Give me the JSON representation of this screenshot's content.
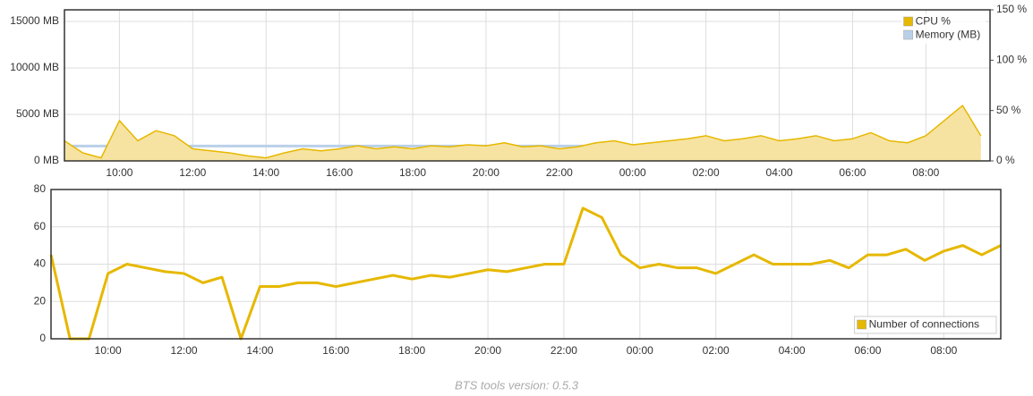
{
  "chart_data": [
    {
      "type": "line",
      "xlim": [
        8.5,
        33.75
      ],
      "xticks": [
        {
          "value": 10,
          "label": "10:00"
        },
        {
          "value": 12,
          "label": "12:00"
        },
        {
          "value": 14,
          "label": "14:00"
        },
        {
          "value": 16,
          "label": "16:00"
        },
        {
          "value": 18,
          "label": "18:00"
        },
        {
          "value": 20,
          "label": "20:00"
        },
        {
          "value": 22,
          "label": "22:00"
        },
        {
          "value": 24,
          "label": "00:00"
        },
        {
          "value": 26,
          "label": "02:00"
        },
        {
          "value": 28,
          "label": "04:00"
        },
        {
          "value": 30,
          "label": "06:00"
        },
        {
          "value": 32,
          "label": "08:00"
        }
      ],
      "ylim": [
        0,
        16250
      ],
      "yticks": [
        {
          "value": 0,
          "label": "0 MB"
        },
        {
          "value": 5000,
          "label": "5000 MB"
        },
        {
          "value": 10000,
          "label": "10000 MB"
        },
        {
          "value": 15000,
          "label": "15000 MB"
        }
      ],
      "y2lim": [
        0,
        150
      ],
      "y2ticks": [
        {
          "value": 0,
          "label": "0 %"
        },
        {
          "value": 50,
          "label": "50 %"
        },
        {
          "value": 100,
          "label": "100 %"
        },
        {
          "value": 150,
          "label": "150 %"
        }
      ],
      "grid": true,
      "legend": "top-right",
      "x": [
        8.5,
        9,
        9.5,
        10,
        10.5,
        11,
        11.5,
        12,
        12.5,
        13,
        13.5,
        14,
        14.5,
        15,
        15.5,
        16,
        16.5,
        17,
        17.5,
        18,
        18.5,
        19,
        19.5,
        20,
        20.5,
        21,
        21.5,
        22,
        22.5,
        23,
        23.5,
        24,
        24.5,
        25,
        25.5,
        26,
        26.5,
        27,
        27.5,
        28,
        28.5,
        29,
        29.5,
        30,
        30.5,
        31,
        31.5,
        32,
        32.5,
        33,
        33.5
      ],
      "series": [
        {
          "name": "CPU %",
          "color": "#e6b800",
          "fill": "#f6e3a2",
          "axis": "y2",
          "values": [
            20,
            8,
            3,
            40,
            20,
            30,
            25,
            12,
            10,
            8,
            5,
            3,
            8,
            12,
            10,
            12,
            15,
            12,
            14,
            12,
            15,
            14,
            16,
            15,
            18,
            14,
            15,
            12,
            14,
            18,
            20,
            16,
            18,
            20,
            22,
            25,
            20,
            22,
            25,
            20,
            22,
            25,
            20,
            22,
            28,
            20,
            18,
            25,
            40,
            55,
            25
          ]
        },
        {
          "name": "Memory (MB)",
          "color": "#b9d0e8",
          "values": [
            1600,
            1600,
            1600,
            1600,
            1600,
            1600,
            1600,
            1600,
            1600,
            1600,
            1600,
            1600,
            1600,
            1600,
            1600,
            1600,
            1600,
            1600,
            1600,
            1600,
            1600,
            1600,
            1600,
            1600,
            1600,
            1600,
            1600,
            1600,
            1600,
            1600,
            1600,
            1600,
            1600,
            1600,
            1600,
            1600,
            1600,
            1600,
            1600,
            1600,
            1600,
            1600,
            1600,
            1600,
            1600,
            1600,
            1600,
            1600,
            1600,
            1600,
            1600
          ]
        }
      ]
    },
    {
      "type": "line",
      "xlim": [
        8.5,
        33.5
      ],
      "xticks": [
        {
          "value": 10,
          "label": "10:00"
        },
        {
          "value": 12,
          "label": "12:00"
        },
        {
          "value": 14,
          "label": "14:00"
        },
        {
          "value": 16,
          "label": "16:00"
        },
        {
          "value": 18,
          "label": "18:00"
        },
        {
          "value": 20,
          "label": "20:00"
        },
        {
          "value": 22,
          "label": "22:00"
        },
        {
          "value": 24,
          "label": "00:00"
        },
        {
          "value": 26,
          "label": "02:00"
        },
        {
          "value": 28,
          "label": "04:00"
        },
        {
          "value": 30,
          "label": "06:00"
        },
        {
          "value": 32,
          "label": "08:00"
        }
      ],
      "ylim": [
        0,
        80
      ],
      "yticks": [
        0,
        20,
        40,
        60,
        80
      ],
      "grid": true,
      "legend": "bottom-right",
      "x": [
        8.5,
        9,
        9.5,
        10,
        10.5,
        11,
        11.5,
        12,
        12.5,
        13,
        13.5,
        14,
        14.5,
        15,
        15.5,
        16,
        16.5,
        17,
        17.5,
        18,
        18.5,
        19,
        19.5,
        20,
        20.5,
        21,
        21.5,
        22,
        22.5,
        23,
        23.5,
        24,
        24.5,
        25,
        25.5,
        26,
        26.5,
        27,
        27.5,
        28,
        28.5,
        29,
        29.5,
        30,
        30.5,
        31,
        31.5,
        32,
        32.5,
        33,
        33.5
      ],
      "series": [
        {
          "name": "Number of connections",
          "color": "#e6b800",
          "values": [
            45,
            0,
            0,
            35,
            40,
            38,
            36,
            35,
            30,
            33,
            0,
            28,
            28,
            30,
            30,
            28,
            30,
            32,
            34,
            32,
            34,
            33,
            35,
            37,
            36,
            38,
            40,
            40,
            70,
            65,
            45,
            38,
            40,
            38,
            38,
            35,
            40,
            45,
            40,
            40,
            40,
            42,
            38,
            45,
            45,
            48,
            42,
            47,
            50,
            45,
            50
          ]
        }
      ]
    }
  ],
  "footer": "BTS tools version: 0.5.3"
}
